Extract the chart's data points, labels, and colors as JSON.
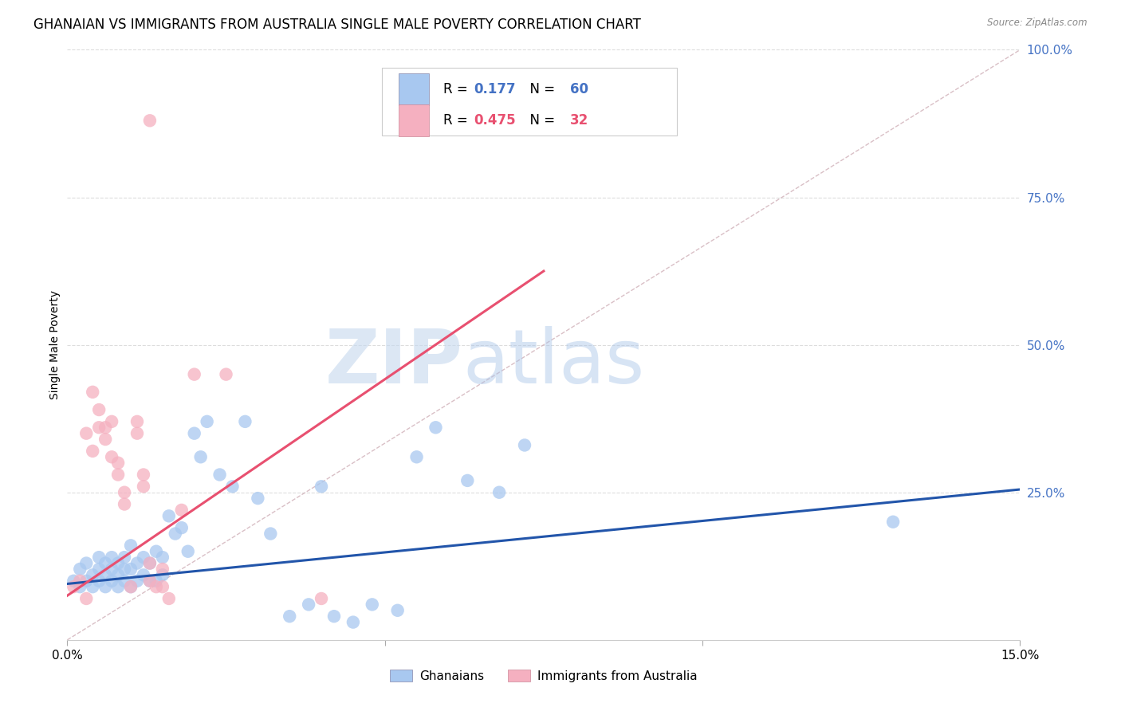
{
  "title": "GHANAIAN VS IMMIGRANTS FROM AUSTRALIA SINGLE MALE POVERTY CORRELATION CHART",
  "source": "Source: ZipAtlas.com",
  "ylabel": "Single Male Poverty",
  "xmin": 0.0,
  "xmax": 0.15,
  "ymin": 0.0,
  "ymax": 1.0,
  "ytick_labels": [
    "100.0%",
    "75.0%",
    "50.0%",
    "25.0%"
  ],
  "ytick_positions": [
    1.0,
    0.75,
    0.5,
    0.25
  ],
  "blue_color": "#A8C8F0",
  "pink_color": "#F5B0C0",
  "blue_line_color": "#2255AA",
  "pink_line_color": "#E85070",
  "diag_color": "#D0B0B8",
  "label_color": "#4472C4",
  "blue_R": "0.177",
  "blue_N": "60",
  "pink_R": "0.475",
  "pink_N": "32",
  "blue_scatter_x": [
    0.001,
    0.002,
    0.002,
    0.003,
    0.003,
    0.004,
    0.004,
    0.005,
    0.005,
    0.005,
    0.006,
    0.006,
    0.006,
    0.007,
    0.007,
    0.007,
    0.008,
    0.008,
    0.008,
    0.009,
    0.009,
    0.009,
    0.01,
    0.01,
    0.01,
    0.011,
    0.011,
    0.012,
    0.012,
    0.013,
    0.013,
    0.014,
    0.014,
    0.015,
    0.015,
    0.016,
    0.017,
    0.018,
    0.019,
    0.02,
    0.021,
    0.022,
    0.024,
    0.026,
    0.028,
    0.03,
    0.032,
    0.035,
    0.038,
    0.042,
    0.045,
    0.048,
    0.052,
    0.055,
    0.058,
    0.063,
    0.068,
    0.072,
    0.13,
    0.04
  ],
  "blue_scatter_y": [
    0.1,
    0.09,
    0.12,
    0.1,
    0.13,
    0.09,
    0.11,
    0.1,
    0.12,
    0.14,
    0.09,
    0.11,
    0.13,
    0.1,
    0.12,
    0.14,
    0.09,
    0.11,
    0.13,
    0.1,
    0.12,
    0.14,
    0.09,
    0.12,
    0.16,
    0.1,
    0.13,
    0.11,
    0.14,
    0.1,
    0.13,
    0.1,
    0.15,
    0.11,
    0.14,
    0.21,
    0.18,
    0.19,
    0.15,
    0.35,
    0.31,
    0.37,
    0.28,
    0.26,
    0.37,
    0.24,
    0.18,
    0.04,
    0.06,
    0.04,
    0.03,
    0.06,
    0.05,
    0.31,
    0.36,
    0.27,
    0.25,
    0.33,
    0.2,
    0.26
  ],
  "pink_scatter_x": [
    0.001,
    0.002,
    0.003,
    0.003,
    0.004,
    0.004,
    0.005,
    0.005,
    0.006,
    0.006,
    0.007,
    0.007,
    0.008,
    0.008,
    0.009,
    0.009,
    0.01,
    0.011,
    0.011,
    0.012,
    0.012,
    0.013,
    0.013,
    0.014,
    0.015,
    0.015,
    0.016,
    0.018,
    0.02,
    0.025,
    0.04,
    0.013
  ],
  "pink_scatter_y": [
    0.09,
    0.1,
    0.07,
    0.35,
    0.32,
    0.42,
    0.36,
    0.39,
    0.34,
    0.36,
    0.31,
    0.37,
    0.28,
    0.3,
    0.25,
    0.23,
    0.09,
    0.35,
    0.37,
    0.28,
    0.26,
    0.1,
    0.13,
    0.09,
    0.09,
    0.12,
    0.07,
    0.22,
    0.45,
    0.45,
    0.07,
    0.88
  ],
  "blue_line_x": [
    0.0,
    0.15
  ],
  "blue_line_y": [
    0.095,
    0.255
  ],
  "pink_line_x": [
    0.0,
    0.075
  ],
  "pink_line_y": [
    0.075,
    0.625
  ],
  "diag_line_x": [
    0.0,
    0.15
  ],
  "diag_line_y": [
    0.0,
    1.0
  ],
  "watermark_zip": "ZIP",
  "watermark_atlas": "atlas",
  "background_color": "#FFFFFF",
  "grid_color": "#DDDDDD",
  "title_fontsize": 12,
  "axis_label_fontsize": 10,
  "tick_fontsize": 11
}
